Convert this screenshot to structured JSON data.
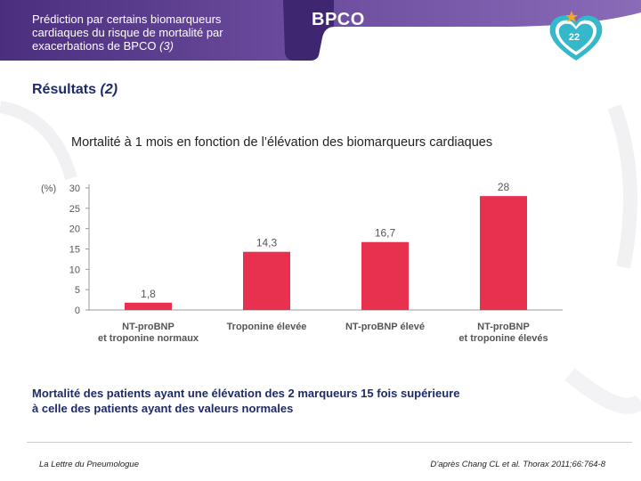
{
  "header": {
    "title": "Prédiction par certains biomarqueurs cardiaques du risque de mortalité par exacerbations de BPCO",
    "ref": "(3)",
    "badge": "BPCO",
    "page_number": "22"
  },
  "section": {
    "title": "Résultats",
    "number": "(2)"
  },
  "chart_data": {
    "type": "bar",
    "title": "Mortalité à 1 mois en fonction de l’élévation des biomarqueurs cardiaques",
    "ylabel": "(%)",
    "xlabel": "",
    "ylim": [
      0,
      30
    ],
    "yticks": [
      0,
      5,
      10,
      15,
      20,
      25,
      30
    ],
    "categories": [
      [
        "NT-proBNP",
        "et troponine normaux"
      ],
      [
        "Troponine élevée"
      ],
      [
        "NT-proBNP élevé"
      ],
      [
        "NT-proBNP",
        "et troponine élevés"
      ]
    ],
    "values": [
      1.8,
      14.3,
      16.7,
      28
    ],
    "value_labels": [
      "1,8",
      "14,3",
      "16,7",
      "28"
    ],
    "bar_color": "#e8304f"
  },
  "conclusion": [
    "Mortalité des patients ayant une élévation des 2 marqueurs 15 fois supérieure",
    "à celle des patients ayant des valeurs normales"
  ],
  "footer": {
    "left": "La Lettre du Pneumologue",
    "right": "D’après Chang CL et al. Thorax 2011;66:764-8"
  },
  "colors": {
    "header_purple": "#6a4a9c",
    "header_dark": "#4b2f7e",
    "heart_teal": "#35b8c9",
    "title_navy": "#1f2a6b"
  }
}
